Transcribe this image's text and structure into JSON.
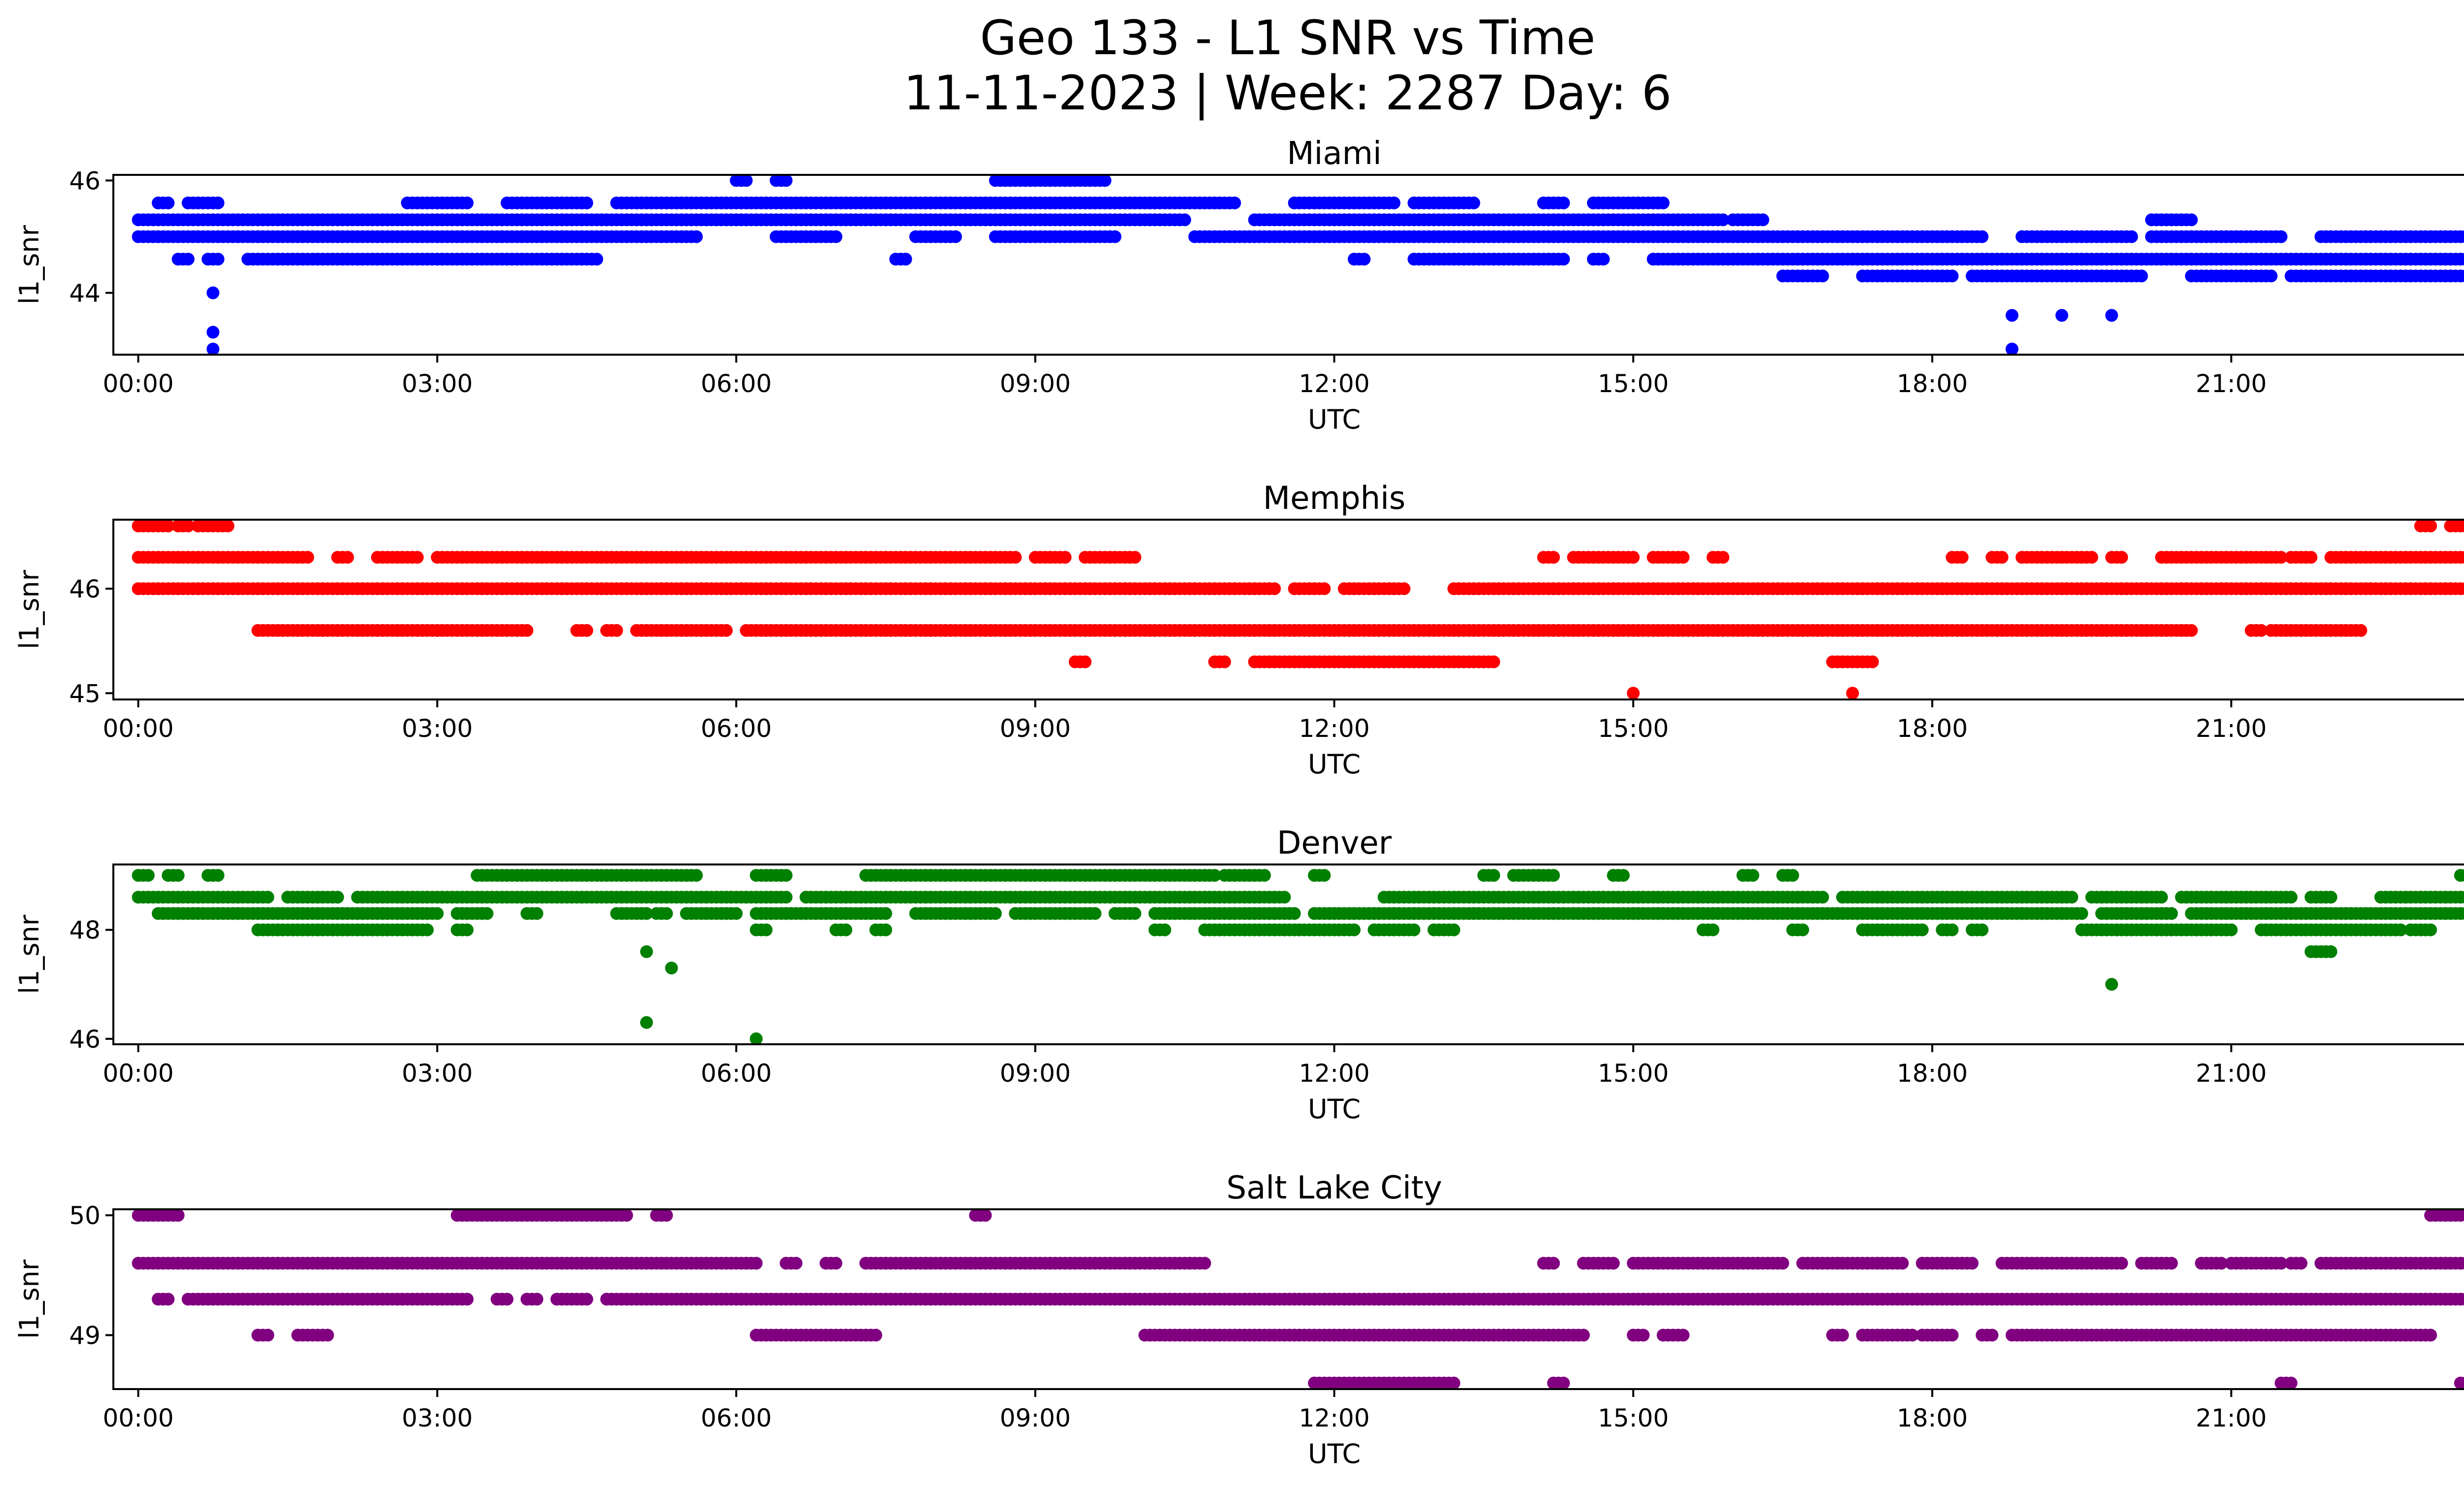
{
  "figure": {
    "title_line1": "Geo 133 - L1 SNR vs Time",
    "title_line2": "11-11-2023 | Week: 2287 Day: 6"
  },
  "chart_data": [
    {
      "type": "scatter",
      "title": "Miami",
      "xlabel": "UTC",
      "ylabel": "l1_snr",
      "color": "#0000ff",
      "xlim": [
        -0.25,
        24.25
      ],
      "ylim": [
        42.9,
        46.1
      ],
      "xticks": [
        "00:00",
        "03:00",
        "06:00",
        "09:00",
        "12:00",
        "15:00",
        "18:00",
        "21:00",
        "00:00"
      ],
      "yticks": [
        44,
        46
      ],
      "grid": false,
      "points": [],
      "bands": [
        {
          "y": 45.3,
          "ranges": [
            [
              0.0,
              10.5
            ],
            [
              11.2,
              15.9
            ],
            [
              16.0,
              16.3
            ],
            [
              20.2,
              20.6
            ],
            [
              23.7,
              24.0
            ]
          ]
        },
        {
          "y": 45.6,
          "ranges": [
            [
              0.2,
              0.3
            ],
            [
              0.5,
              0.8
            ],
            [
              2.7,
              3.3
            ],
            [
              3.7,
              4.5
            ],
            [
              4.8,
              11.0
            ],
            [
              11.6,
              12.6
            ],
            [
              12.8,
              13.4
            ],
            [
              14.1,
              14.3
            ],
            [
              14.6,
              15.3
            ]
          ]
        },
        {
          "y": 45.0,
          "ranges": [
            [
              0.0,
              5.6
            ],
            [
              6.4,
              7.0
            ],
            [
              7.8,
              8.2
            ],
            [
              8.6,
              9.8
            ],
            [
              10.6,
              18.5
            ],
            [
              18.9,
              20.0
            ],
            [
              20.2,
              21.5
            ],
            [
              21.9,
              24.0
            ]
          ]
        },
        {
          "y": 44.6,
          "ranges": [
            [
              0.4,
              0.5
            ],
            [
              0.7,
              0.8
            ],
            [
              1.1,
              4.6
            ],
            [
              7.6,
              7.7
            ],
            [
              12.2,
              12.3
            ],
            [
              12.8,
              14.3
            ],
            [
              14.6,
              14.7
            ],
            [
              15.2,
              24.0
            ]
          ]
        },
        {
          "y": 44.3,
          "ranges": [
            [
              16.5,
              16.9
            ],
            [
              17.3,
              18.2
            ],
            [
              18.4,
              20.1
            ],
            [
              20.6,
              21.4
            ],
            [
              21.6,
              23.5
            ]
          ]
        },
        {
          "y": 46.0,
          "ranges": [
            [
              6.0,
              6.1
            ],
            [
              6.4,
              6.5
            ],
            [
              8.6,
              9.7
            ]
          ]
        }
      ],
      "extra_points": [
        {
          "x": 0.75,
          "y": 44.0
        },
        {
          "x": 0.75,
          "y": 43.3
        },
        {
          "x": 0.75,
          "y": 43.0
        },
        {
          "x": 18.8,
          "y": 43.6
        },
        {
          "x": 18.8,
          "y": 43.0
        },
        {
          "x": 19.3,
          "y": 43.6
        },
        {
          "x": 19.8,
          "y": 43.6
        }
      ]
    },
    {
      "type": "scatter",
      "title": "Memphis",
      "xlabel": "UTC",
      "ylabel": "l1_snr",
      "color": "#ff0000",
      "xlim": [
        -0.25,
        24.25
      ],
      "ylim": [
        44.94,
        46.66
      ],
      "xticks": [
        "00:00",
        "03:00",
        "06:00",
        "09:00",
        "12:00",
        "15:00",
        "18:00",
        "21:00",
        "00:00"
      ],
      "yticks": [
        45,
        46
      ],
      "grid": false,
      "bands": [
        {
          "y": 46.6,
          "ranges": [
            [
              0.0,
              0.3
            ],
            [
              0.4,
              0.5
            ],
            [
              0.6,
              0.9
            ],
            [
              22.9,
              23.0
            ],
            [
              23.2,
              24.0
            ]
          ]
        },
        {
          "y": 46.3,
          "ranges": [
            [
              0.0,
              1.7
            ],
            [
              2.0,
              2.1
            ],
            [
              2.4,
              2.8
            ],
            [
              3.0,
              8.8
            ],
            [
              9.0,
              9.3
            ],
            [
              9.5,
              10.0
            ],
            [
              14.1,
              14.2
            ],
            [
              14.4,
              15.0
            ],
            [
              15.2,
              15.5
            ],
            [
              15.8,
              15.9
            ],
            [
              18.2,
              18.3
            ],
            [
              18.6,
              18.7
            ],
            [
              18.9,
              19.6
            ],
            [
              19.8,
              19.9
            ],
            [
              20.3,
              21.5
            ],
            [
              21.6,
              21.8
            ],
            [
              22.0,
              24.0
            ]
          ]
        },
        {
          "y": 46.0,
          "ranges": [
            [
              0.0,
              11.4
            ],
            [
              11.6,
              11.9
            ],
            [
              12.1,
              12.7
            ],
            [
              13.2,
              23.5
            ],
            [
              23.6,
              23.9
            ]
          ]
        },
        {
          "y": 45.6,
          "ranges": [
            [
              1.2,
              3.9
            ],
            [
              4.4,
              4.5
            ],
            [
              4.7,
              4.8
            ],
            [
              5.0,
              5.9
            ],
            [
              6.1,
              20.6
            ],
            [
              21.2,
              21.3
            ],
            [
              21.4,
              22.3
            ]
          ]
        },
        {
          "y": 45.3,
          "ranges": [
            [
              9.4,
              9.5
            ],
            [
              10.8,
              10.9
            ],
            [
              11.2,
              13.6
            ],
            [
              17.0,
              17.4
            ]
          ]
        },
        {
          "y": 45.0,
          "ranges": [
            [
              15.0,
              15.0
            ],
            [
              17.2,
              17.2
            ]
          ]
        }
      ],
      "extra_points": []
    },
    {
      "type": "scatter",
      "title": "Denver",
      "xlabel": "UTC",
      "ylabel": "l1_snr",
      "color": "#008000",
      "xlim": [
        -0.25,
        24.25
      ],
      "ylim": [
        45.9,
        49.2
      ],
      "xticks": [
        "00:00",
        "03:00",
        "06:00",
        "09:00",
        "12:00",
        "15:00",
        "18:00",
        "21:00",
        "00:00"
      ],
      "yticks": [
        46,
        48
      ],
      "grid": false,
      "bands": [
        {
          "y": 49.0,
          "ranges": [
            [
              0.0,
              0.1
            ],
            [
              0.3,
              0.4
            ],
            [
              0.7,
              0.8
            ],
            [
              3.4,
              5.6
            ],
            [
              6.2,
              6.5
            ],
            [
              7.3,
              10.8
            ],
            [
              10.9,
              11.3
            ],
            [
              11.8,
              11.9
            ],
            [
              13.5,
              13.6
            ],
            [
              13.8,
              14.2
            ],
            [
              14.8,
              14.9
            ],
            [
              16.1,
              16.2
            ],
            [
              16.5,
              16.6
            ],
            [
              23.3,
              23.4
            ]
          ]
        },
        {
          "y": 48.6,
          "ranges": [
            [
              0.0,
              1.3
            ],
            [
              1.5,
              2.0
            ],
            [
              2.2,
              6.5
            ],
            [
              6.7,
              11.5
            ],
            [
              12.5,
              16.9
            ],
            [
              17.1,
              19.4
            ],
            [
              19.6,
              20.3
            ],
            [
              20.5,
              21.6
            ],
            [
              21.8,
              22.0
            ],
            [
              22.5,
              24.0
            ]
          ]
        },
        {
          "y": 48.3,
          "ranges": [
            [
              0.2,
              3.0
            ],
            [
              3.2,
              3.5
            ],
            [
              3.9,
              4.0
            ],
            [
              4.8,
              5.1
            ],
            [
              5.2,
              5.3
            ],
            [
              5.5,
              6.0
            ],
            [
              6.2,
              7.5
            ],
            [
              7.8,
              8.6
            ],
            [
              8.8,
              9.6
            ],
            [
              9.8,
              10.0
            ],
            [
              10.2,
              11.6
            ],
            [
              11.8,
              19.5
            ],
            [
              19.7,
              20.4
            ],
            [
              20.6,
              24.0
            ]
          ]
        },
        {
          "y": 48.0,
          "ranges": [
            [
              1.2,
              2.9
            ],
            [
              3.2,
              3.3
            ],
            [
              6.2,
              6.3
            ],
            [
              7.0,
              7.1
            ],
            [
              7.4,
              7.5
            ],
            [
              10.2,
              10.3
            ],
            [
              10.7,
              12.2
            ],
            [
              12.4,
              12.8
            ],
            [
              13.0,
              13.2
            ],
            [
              15.7,
              15.8
            ],
            [
              16.6,
              16.7
            ],
            [
              17.3,
              17.9
            ],
            [
              18.1,
              18.2
            ],
            [
              18.4,
              18.5
            ],
            [
              19.5,
              21.0
            ],
            [
              21.3,
              22.7
            ],
            [
              22.8,
              23.0
            ],
            [
              23.6,
              23.7
            ]
          ]
        },
        {
          "y": 47.6,
          "ranges": [
            [
              21.8,
              22.0
            ]
          ]
        }
      ],
      "extra_points": [
        {
          "x": 5.1,
          "y": 47.6
        },
        {
          "x": 5.35,
          "y": 47.3
        },
        {
          "x": 5.1,
          "y": 46.3
        },
        {
          "x": 6.2,
          "y": 46.0
        },
        {
          "x": 19.8,
          "y": 47.0
        }
      ]
    },
    {
      "type": "scatter",
      "title": "Salt Lake City",
      "xlabel": "UTC",
      "ylabel": "l1_snr",
      "color": "#800080",
      "xlim": [
        -0.25,
        24.25
      ],
      "ylim": [
        48.55,
        50.05
      ],
      "xticks": [
        "00:00",
        "03:00",
        "06:00",
        "09:00",
        "12:00",
        "15:00",
        "18:00",
        "21:00",
        "00:00"
      ],
      "yticks": [
        49,
        50
      ],
      "grid": false,
      "bands": [
        {
          "y": 50.0,
          "ranges": [
            [
              0.0,
              0.4
            ],
            [
              3.2,
              4.9
            ],
            [
              5.2,
              5.3
            ],
            [
              8.4,
              8.5
            ],
            [
              23.0,
              23.3
            ],
            [
              23.4,
              23.6
            ]
          ]
        },
        {
          "y": 49.6,
          "ranges": [
            [
              0.0,
              6.2
            ],
            [
              6.5,
              6.6
            ],
            [
              6.9,
              7.0
            ],
            [
              7.3,
              10.7
            ],
            [
              14.1,
              14.2
            ],
            [
              14.5,
              14.8
            ],
            [
              15.0,
              16.5
            ],
            [
              16.7,
              17.7
            ],
            [
              17.9,
              18.4
            ],
            [
              18.7,
              19.9
            ],
            [
              20.1,
              20.4
            ],
            [
              20.7,
              20.9
            ],
            [
              21.0,
              21.5
            ],
            [
              21.6,
              21.7
            ],
            [
              21.9,
              24.0
            ]
          ]
        },
        {
          "y": 49.3,
          "ranges": [
            [
              0.2,
              0.3
            ],
            [
              0.5,
              3.3
            ],
            [
              3.6,
              3.7
            ],
            [
              3.9,
              4.0
            ],
            [
              4.2,
              4.5
            ],
            [
              4.7,
              24.0
            ]
          ]
        },
        {
          "y": 49.0,
          "ranges": [
            [
              1.2,
              1.3
            ],
            [
              1.6,
              1.9
            ],
            [
              6.2,
              7.4
            ],
            [
              10.1,
              14.5
            ],
            [
              15.0,
              15.1
            ],
            [
              15.3,
              15.5
            ],
            [
              17.0,
              17.1
            ],
            [
              17.3,
              17.8
            ],
            [
              17.9,
              18.2
            ],
            [
              18.5,
              18.6
            ],
            [
              18.8,
              23.0
            ]
          ]
        },
        {
          "y": 48.6,
          "ranges": [
            [
              11.8,
              13.2
            ],
            [
              14.2,
              14.3
            ],
            [
              21.5,
              21.6
            ],
            [
              23.3,
              23.4
            ]
          ]
        }
      ],
      "extra_points": []
    }
  ]
}
